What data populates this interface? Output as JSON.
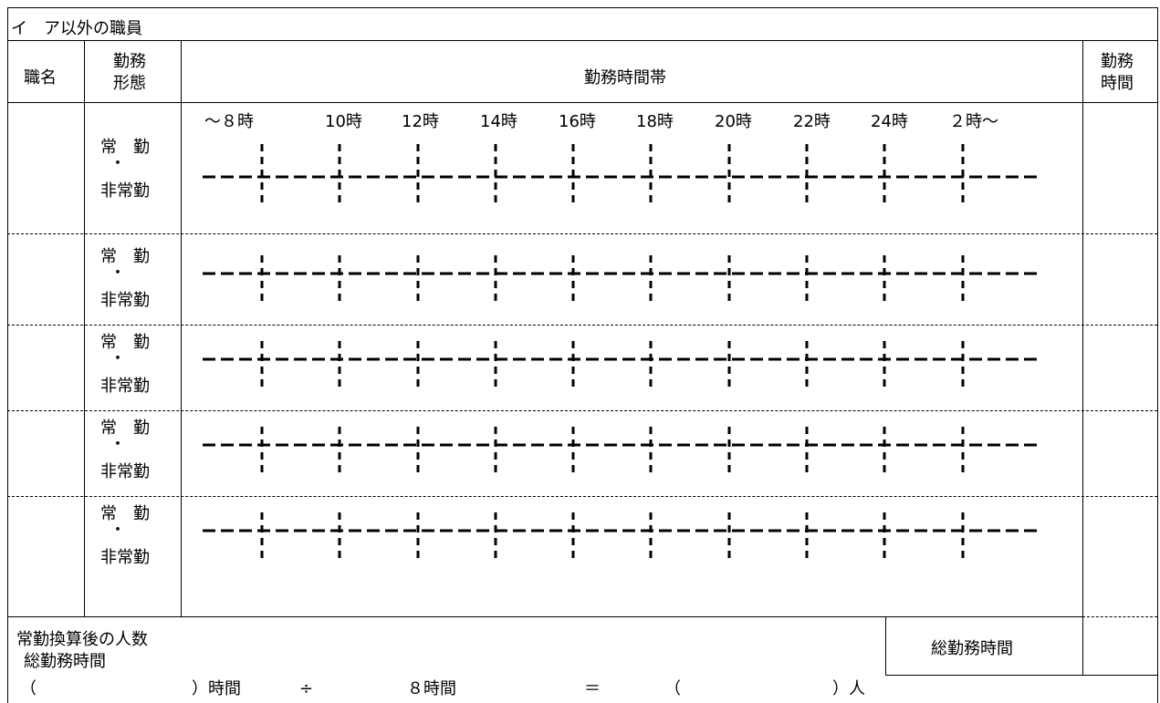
{
  "section_title": "イ　ア以外の職員",
  "headers": {
    "job_title": "職名",
    "work_form_1": "勤務",
    "work_form_2": "形態",
    "time_band": "勤務時間帯",
    "work_hours_1": "勤務",
    "work_hours_2": "時間"
  },
  "time_labels": [
    "～８時",
    "10時",
    "12時",
    "14時",
    "16時",
    "18時",
    "20時",
    "22時",
    "24時",
    "２時～"
  ],
  "rows": [
    {
      "form_top": "常　勤",
      "form_dot": "・",
      "form_bottom": "非常勤"
    },
    {
      "form_top": "常　勤",
      "form_dot": "・",
      "form_bottom": "非常勤"
    },
    {
      "form_top": "常　勤",
      "form_dot": "・",
      "form_bottom": "非常勤"
    },
    {
      "form_top": "常　勤",
      "form_dot": "・",
      "form_bottom": "非常勤"
    },
    {
      "form_top": "常　勤",
      "form_dot": "・",
      "form_bottom": "非常勤"
    }
  ],
  "footer": {
    "converted_count_label": "常勤換算後の人数",
    "total_hours_label": "総勤務時間",
    "formula": {
      "open_paren_1": "（",
      "close_1": "）時間",
      "divide": "÷",
      "eight_hours": "８時間",
      "equals": "＝",
      "open_paren_2": "（",
      "close_2": "）人"
    },
    "total_hours_box_label": "総勤務時間"
  }
}
